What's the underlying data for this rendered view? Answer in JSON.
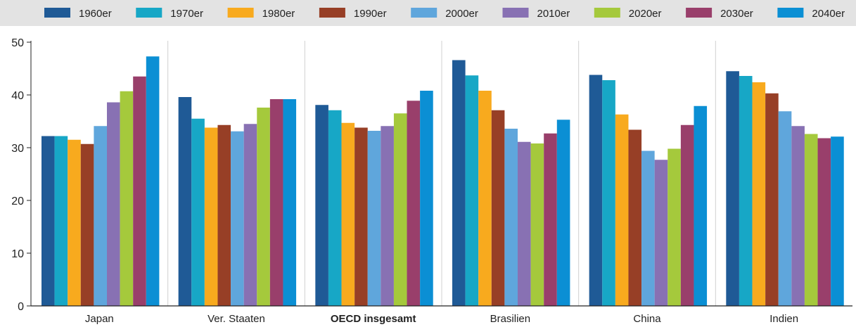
{
  "chart_data": {
    "type": "bar",
    "categories": [
      "Japan",
      "Ver. Staaten",
      "OECD insgesamt",
      "Brasilien",
      "China",
      "Indien"
    ],
    "highlight_category": "OECD insgesamt",
    "series": [
      {
        "name": "1960er",
        "color": "#1f5a96",
        "values": [
          32.2,
          39.6,
          38.1,
          46.6,
          43.8,
          44.5
        ]
      },
      {
        "name": "1970er",
        "color": "#17a7c6",
        "values": [
          32.2,
          35.5,
          37.1,
          43.7,
          42.8,
          43.6
        ]
      },
      {
        "name": "1980er",
        "color": "#f8aa1e",
        "values": [
          31.5,
          33.8,
          34.7,
          40.8,
          36.3,
          42.4
        ]
      },
      {
        "name": "1990er",
        "color": "#973f26",
        "values": [
          30.7,
          34.3,
          33.8,
          37.1,
          33.4,
          40.3
        ]
      },
      {
        "name": "2000er",
        "color": "#5fa6dc",
        "values": [
          34.1,
          33.1,
          33.2,
          33.6,
          29.4,
          36.9
        ]
      },
      {
        "name": "2010er",
        "color": "#8871b3",
        "values": [
          38.6,
          34.5,
          34.1,
          31.1,
          27.7,
          34.1
        ]
      },
      {
        "name": "2020er",
        "color": "#a5c93c",
        "values": [
          40.7,
          37.6,
          36.5,
          30.8,
          29.8,
          32.6
        ]
      },
      {
        "name": "2030er",
        "color": "#993f6b",
        "values": [
          43.5,
          39.2,
          38.9,
          32.7,
          34.3,
          31.8
        ]
      },
      {
        "name": "2040er",
        "color": "#0b8fd4",
        "values": [
          47.3,
          39.2,
          40.8,
          35.3,
          37.9,
          32.1
        ]
      }
    ],
    "y_ticks": [
      "0",
      "10",
      "20",
      "30",
      "40",
      "50"
    ],
    "ylim": [
      0,
      50
    ],
    "legend_position": "top",
    "grid": false,
    "group_separators": true
  }
}
